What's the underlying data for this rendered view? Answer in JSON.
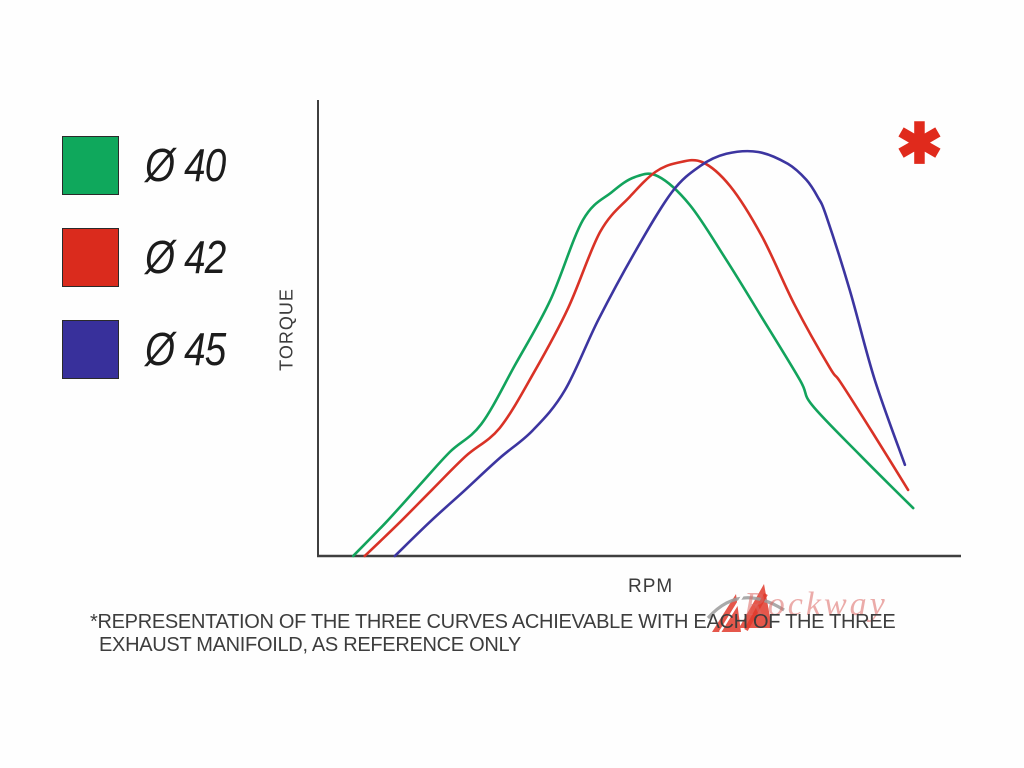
{
  "chart_data": {
    "type": "line",
    "title": "",
    "xlabel": "RPM",
    "ylabel": "TORQUE",
    "axes": {
      "x_ticks": [],
      "y_ticks": [],
      "grid": false,
      "note": "qualitative axes, no numeric scale shown"
    },
    "legend": {
      "position": "outside-left",
      "items": [
        {
          "label": "Ø 40",
          "color": "#0FA85C"
        },
        {
          "label": "Ø 42",
          "color": "#DA2B1D"
        },
        {
          "label": "Ø 45",
          "color": "#38309B"
        }
      ]
    },
    "series": [
      {
        "name": "Ø 40",
        "color": "#12A35C",
        "points": [
          [
            5.5,
            0
          ],
          [
            10.5,
            7.2
          ],
          [
            15.6,
            15.1
          ],
          [
            20.6,
            22.8
          ],
          [
            25.5,
            28.9
          ],
          [
            30.8,
            41.9
          ],
          [
            36.3,
            56.1
          ],
          [
            41.4,
            73.7
          ],
          [
            45.9,
            79.8
          ],
          [
            49.5,
            83.1
          ],
          [
            53.1,
            83.3
          ],
          [
            58.1,
            77.0
          ],
          [
            63.6,
            65.4
          ],
          [
            69.1,
            52.9
          ],
          [
            75.3,
            38.6
          ],
          [
            77.2,
            33.1
          ],
          [
            84.7,
            22.1
          ],
          [
            93.0,
            10.5
          ]
        ]
      },
      {
        "name": "Ø 42",
        "color": "#D93226",
        "points": [
          [
            7.3,
            0
          ],
          [
            12.5,
            7.0
          ],
          [
            17.8,
            14.5
          ],
          [
            23.1,
            21.9
          ],
          [
            28.4,
            28.1
          ],
          [
            33.8,
            40.4
          ],
          [
            39.1,
            54.4
          ],
          [
            44.1,
            71.1
          ],
          [
            48.8,
            78.9
          ],
          [
            52.7,
            84.2
          ],
          [
            56.1,
            86.2
          ],
          [
            60.0,
            86.4
          ],
          [
            64.4,
            81.1
          ],
          [
            69.4,
            70.0
          ],
          [
            74.5,
            55.0
          ],
          [
            80.0,
            41.2
          ],
          [
            81.6,
            38.2
          ],
          [
            86.6,
            27.2
          ],
          [
            92.2,
            14.5
          ]
        ]
      },
      {
        "name": "Ø 45",
        "color": "#3C35A0",
        "points": [
          [
            12.0,
            0
          ],
          [
            17.5,
            7.5
          ],
          [
            23.0,
            14.5
          ],
          [
            28.4,
            21.5
          ],
          [
            33.6,
            27.6
          ],
          [
            38.6,
            36.4
          ],
          [
            43.8,
            51.8
          ],
          [
            49.7,
            67.1
          ],
          [
            55.3,
            79.8
          ],
          [
            59.7,
            85.5
          ],
          [
            63.8,
            88.2
          ],
          [
            68.8,
            88.6
          ],
          [
            73.4,
            86.0
          ],
          [
            76.3,
            82.5
          ],
          [
            78.1,
            78.7
          ],
          [
            79.4,
            74.6
          ],
          [
            83.1,
            58.3
          ],
          [
            87.0,
            38.6
          ],
          [
            91.7,
            20.0
          ]
        ]
      }
    ]
  },
  "note": {
    "marker": "✱",
    "line1": "*REPRESENTATION OF THE THREE CURVES ACHIEVABLE WITH EACH OF THE THREE",
    "line2": "EXHAUST MANIFOILD, AS REFERENCE ONLY"
  },
  "watermark": {
    "text": "Rockway"
  },
  "colors": {
    "axis": "#3F3F3F",
    "text": "#3A3A3A",
    "asterisk": "#E02A1C",
    "watermark_text": "#DD6964",
    "watermark_logo_red": "#E0392B",
    "watermark_logo_gray": "#9B9B9B"
  }
}
